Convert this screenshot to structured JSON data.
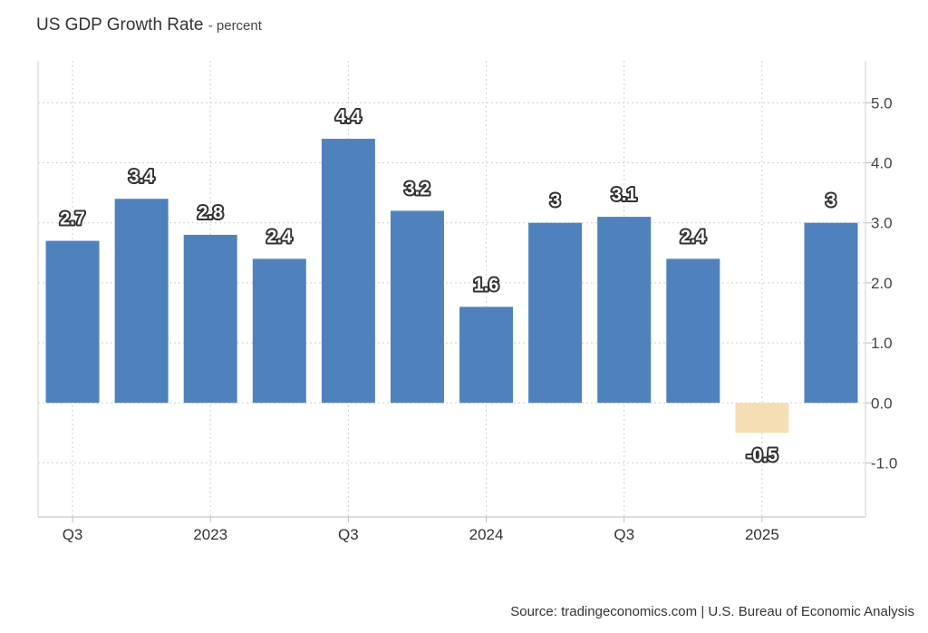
{
  "header": {
    "title": "US GDP Growth Rate",
    "subtitle": "- percent"
  },
  "footer": {
    "source": "Source: tradingeconomics.com | U.S. Bureau of Economic Analysis"
  },
  "colors": {
    "positive_bar": "#4f81bd",
    "negative_bar": "#f5deb3",
    "grid": "#d0d0d0",
    "axis": "#bbbbbb"
  },
  "chart_data": {
    "type": "bar",
    "title": "US GDP Growth Rate",
    "subtitle": "percent",
    "values": [
      2.7,
      3.4,
      2.8,
      2.4,
      4.4,
      3.2,
      1.6,
      3,
      3.1,
      2.4,
      -0.5,
      3
    ],
    "data_labels": [
      "2.7",
      "3.4",
      "2.8",
      "2.4",
      "4.4",
      "3.2",
      "1.6",
      "3",
      "3.1",
      "2.4",
      "-0.5",
      "3"
    ],
    "x_tick_labels": [
      {
        "bar_index": 0,
        "label": "Q3"
      },
      {
        "bar_index": 2,
        "label": "2023"
      },
      {
        "bar_index": 4,
        "label": "Q3"
      },
      {
        "bar_index": 6,
        "label": "2024"
      },
      {
        "bar_index": 8,
        "label": "Q3"
      },
      {
        "bar_index": 10,
        "label": "2025"
      }
    ],
    "y_ticks": [
      "-1.0",
      "0.0",
      "1.0",
      "2.0",
      "3.0",
      "4.0",
      "5.0"
    ],
    "y_tick_values": [
      -1,
      0,
      1,
      2,
      3,
      4,
      5
    ],
    "ylim": [
      -1.9,
      5.7
    ],
    "y_axis_side": "right",
    "grid": true,
    "legend": "none"
  }
}
